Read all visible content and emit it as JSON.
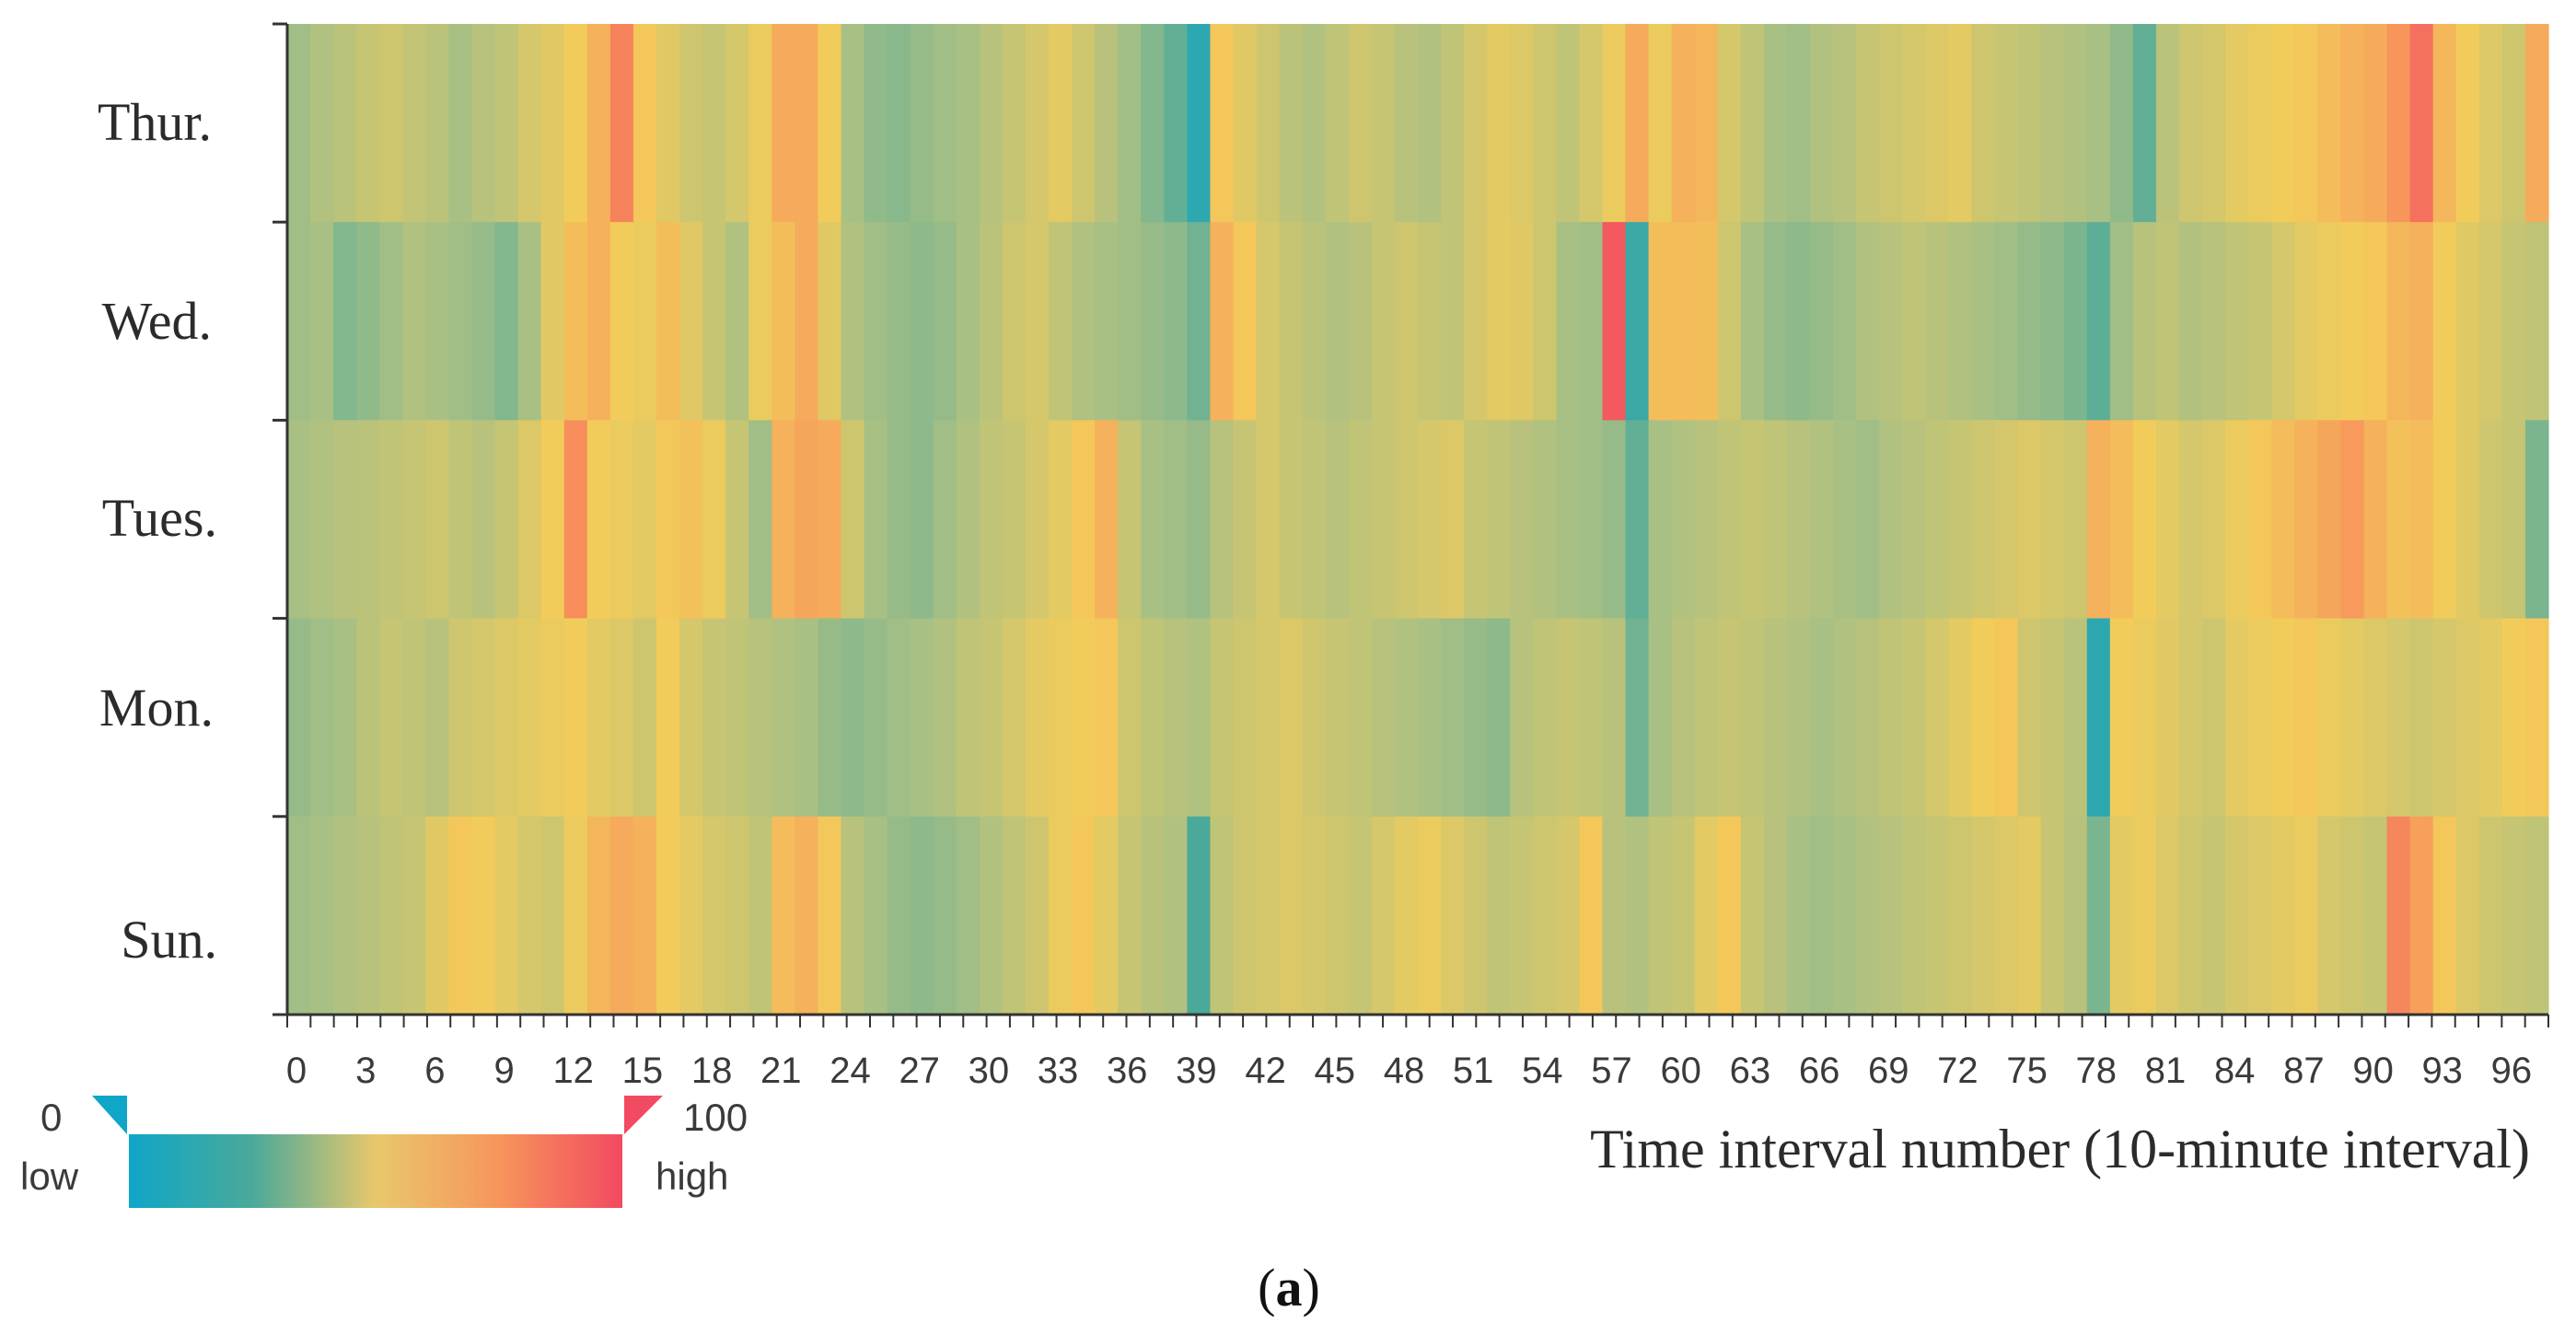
{
  "chart_data": {
    "type": "heatmap",
    "title": "",
    "xlabel": "Time interval number (10-minute interval)",
    "ylabel": "",
    "rows": [
      "Thur.",
      "Wed.",
      "Tues.",
      "Mon.",
      "Sun."
    ],
    "x_ticks": [
      0,
      3,
      6,
      9,
      12,
      15,
      18,
      21,
      24,
      27,
      30,
      33,
      36,
      39,
      42,
      45,
      48,
      51,
      54,
      57,
      60,
      63,
      66,
      69,
      72,
      75,
      78,
      81,
      84,
      87,
      90,
      93,
      96
    ],
    "x_count": 98,
    "value_range": [
      0,
      100
    ],
    "colormap": [
      "#0fa6c8",
      "#4aa99a",
      "#a9c084",
      "#f2cc5a",
      "#f7955b",
      "#f24a60"
    ],
    "values": [
      [
        38,
        42,
        45,
        48,
        50,
        47,
        45,
        40,
        44,
        46,
        52,
        55,
        60,
        70,
        85,
        62,
        55,
        50,
        48,
        52,
        58,
        72,
        72,
        60,
        40,
        35,
        33,
        36,
        38,
        40,
        44,
        48,
        52,
        56,
        50,
        44,
        38,
        32,
        25,
        10,
        62,
        55,
        50,
        45,
        42,
        46,
        50,
        48,
        44,
        42,
        46,
        52,
        56,
        54,
        50,
        46,
        52,
        58,
        72,
        58,
        70,
        68,
        52,
        46,
        40,
        38,
        42,
        44,
        48,
        50,
        52,
        54,
        56,
        50,
        48,
        46,
        44,
        42,
        40,
        35,
        25,
        45,
        50,
        52,
        56,
        58,
        60,
        62,
        66,
        70,
        72,
        80,
        90,
        68,
        60,
        54,
        50,
        72
      ],
      [
        38,
        40,
        32,
        35,
        38,
        42,
        40,
        38,
        36,
        32,
        40,
        55,
        65,
        70,
        60,
        58,
        65,
        55,
        48,
        42,
        58,
        65,
        72,
        55,
        42,
        38,
        36,
        34,
        36,
        40,
        45,
        50,
        52,
        46,
        42,
        40,
        38,
        36,
        34,
        28,
        70,
        62,
        52,
        48,
        45,
        42,
        44,
        48,
        50,
        48,
        46,
        52,
        56,
        55,
        50,
        40,
        38,
        96,
        15,
        65,
        66,
        65,
        50,
        40,
        36,
        34,
        36,
        38,
        42,
        44,
        46,
        44,
        42,
        40,
        38,
        36,
        34,
        30,
        24,
        38,
        44,
        46,
        42,
        44,
        46,
        48,
        52,
        56,
        58,
        60,
        62,
        68,
        70,
        60,
        55,
        52,
        48,
        46
      ],
      [
        40,
        42,
        44,
        45,
        46,
        48,
        50,
        46,
        44,
        48,
        54,
        60,
        82,
        60,
        58,
        56,
        62,
        64,
        58,
        48,
        38,
        70,
        74,
        72,
        50,
        40,
        36,
        34,
        38,
        42,
        46,
        48,
        52,
        56,
        62,
        70,
        48,
        40,
        38,
        36,
        44,
        48,
        52,
        48,
        46,
        44,
        46,
        48,
        50,
        52,
        54,
        48,
        46,
        44,
        42,
        40,
        38,
        36,
        25,
        40,
        42,
        44,
        46,
        48,
        46,
        44,
        42,
        40,
        38,
        42,
        44,
        46,
        48,
        50,
        52,
        54,
        52,
        50,
        70,
        66,
        60,
        56,
        52,
        54,
        58,
        62,
        66,
        70,
        74,
        78,
        70,
        64,
        66,
        60,
        55,
        50,
        48,
        30
      ],
      [
        36,
        38,
        40,
        45,
        48,
        46,
        44,
        50,
        52,
        54,
        56,
        58,
        60,
        56,
        54,
        50,
        60,
        52,
        48,
        46,
        44,
        42,
        40,
        36,
        34,
        36,
        38,
        40,
        42,
        46,
        48,
        52,
        56,
        58,
        60,
        62,
        50,
        46,
        44,
        42,
        48,
        50,
        52,
        54,
        50,
        48,
        46,
        44,
        42,
        40,
        38,
        36,
        34,
        44,
        46,
        48,
        46,
        44,
        28,
        40,
        44,
        46,
        48,
        46,
        44,
        42,
        40,
        42,
        44,
        46,
        48,
        52,
        56,
        60,
        62,
        50,
        48,
        45,
        10,
        60,
        58,
        55,
        52,
        50,
        56,
        58,
        60,
        62,
        58,
        56,
        54,
        52,
        50,
        52,
        54,
        56,
        60,
        62
      ],
      [
        38,
        40,
        42,
        44,
        46,
        48,
        55,
        62,
        60,
        56,
        52,
        50,
        58,
        68,
        72,
        70,
        60,
        56,
        52,
        50,
        46,
        66,
        70,
        62,
        44,
        40,
        36,
        34,
        36,
        38,
        42,
        46,
        50,
        58,
        62,
        56,
        48,
        44,
        42,
        20,
        46,
        50,
        52,
        54,
        52,
        50,
        48,
        52,
        56,
        58,
        54,
        50,
        46,
        48,
        50,
        52,
        62,
        44,
        42,
        46,
        48,
        56,
        62,
        48,
        44,
        40,
        38,
        40,
        42,
        44,
        46,
        48,
        50,
        52,
        54,
        56,
        48,
        44,
        30,
        56,
        58,
        54,
        50,
        48,
        52,
        54,
        56,
        58,
        52,
        50,
        48,
        84,
        76,
        62,
        54,
        50,
        48,
        46
      ]
    ]
  },
  "legend": {
    "min_value": "0",
    "max_value": "100",
    "low_label": "low",
    "high_label": "high"
  },
  "caption": {
    "open": "(",
    "letter": "a",
    "close": ")"
  }
}
